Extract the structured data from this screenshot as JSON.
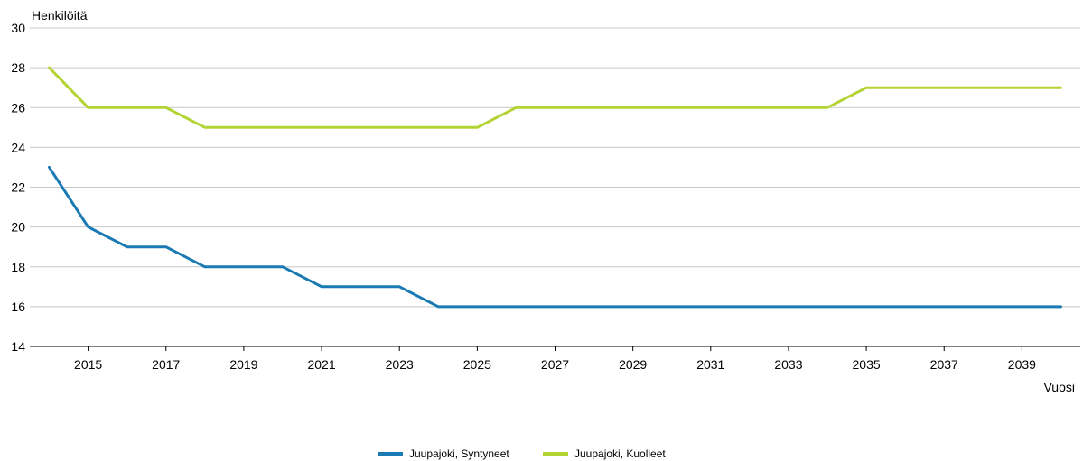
{
  "chart_data": {
    "type": "line",
    "ylabel": "Henkilöitä",
    "xlabel": "Vuosi",
    "x": [
      2014,
      2015,
      2016,
      2017,
      2018,
      2019,
      2020,
      2021,
      2022,
      2023,
      2024,
      2025,
      2026,
      2027,
      2028,
      2029,
      2030,
      2031,
      2032,
      2033,
      2034,
      2035,
      2036,
      2037,
      2038,
      2039,
      2040
    ],
    "x_tick_labels": [
      "2015",
      "2017",
      "2019",
      "2021",
      "2023",
      "2025",
      "2027",
      "2029",
      "2031",
      "2033",
      "2035",
      "2037",
      "2039"
    ],
    "y_tick_labels": [
      "30",
      "28",
      "26",
      "24",
      "22",
      "20",
      "18",
      "16",
      "14"
    ],
    "ylim": [
      14,
      30
    ],
    "grid": true,
    "legend_position": "bottom",
    "series": [
      {
        "name": "Juupajoki, Syntyneet",
        "color": "#1a7ab4",
        "values": [
          23,
          20,
          19,
          19,
          18,
          18,
          18,
          17,
          17,
          17,
          16,
          16,
          16,
          16,
          16,
          16,
          16,
          16,
          16,
          16,
          16,
          16,
          16,
          16,
          16,
          16,
          16
        ]
      },
      {
        "name": "Juupajoki, Kuolleet",
        "color": "#b4d335",
        "values": [
          28,
          26,
          26,
          26,
          25,
          25,
          25,
          25,
          25,
          25,
          25,
          25,
          26,
          26,
          26,
          26,
          26,
          26,
          26,
          26,
          26,
          27,
          27,
          27,
          27,
          27,
          27
        ]
      }
    ]
  }
}
